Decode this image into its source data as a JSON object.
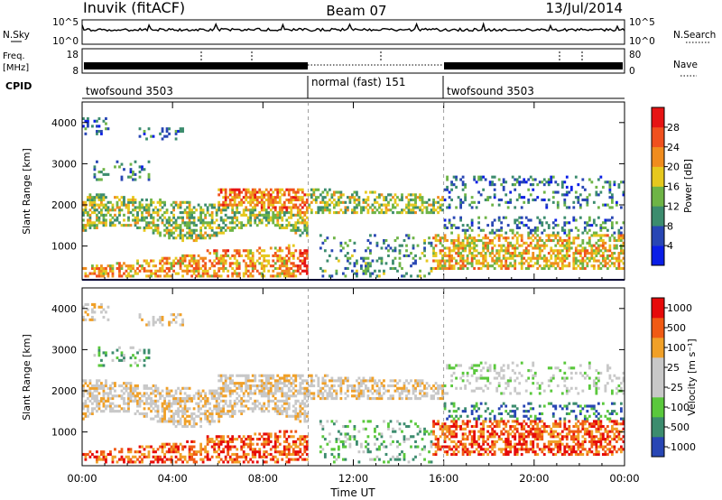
{
  "header": {
    "title_left": "Inuvik (fitACF)",
    "title_center": "Beam 07",
    "title_right": "13/Jul/2014"
  },
  "strip_nsky": {
    "left_label": "N.Sky",
    "right_label": "N.Search",
    "left_ticks": [
      "10^5",
      "10^0"
    ],
    "right_ticks": [
      "10^5",
      "10^0"
    ]
  },
  "strip_freq": {
    "left_label": "Freq.",
    "left_unit": "[MHz]",
    "right_label": "Nave",
    "left_ticks": [
      "18",
      "8"
    ],
    "right_ticks": [
      "80",
      "0"
    ]
  },
  "cpid": {
    "label": "CPID",
    "segments": [
      {
        "name": "twofsound 3503",
        "start_h": 0,
        "end_h": 10
      },
      {
        "name": "normal (fast) 151",
        "start_h": 10,
        "end_h": 16
      },
      {
        "name": "twofsound 3503",
        "start_h": 16,
        "end_h": 24
      }
    ]
  },
  "colors": {
    "power": [
      "#0a1ee6",
      "#2846b4",
      "#3c8c6e",
      "#6eb446",
      "#e6c81e",
      "#f08c1e",
      "#f0501e",
      "#e61414"
    ],
    "velocity": [
      "#e60a0a",
      "#f05a14",
      "#f0a028",
      "#c8c8c8",
      "#c8c8c8",
      "#5ac83c",
      "#3c8c6e",
      "#2846b4"
    ]
  },
  "chart_data": [
    {
      "type": "heatmap",
      "title": "",
      "xlabel": "",
      "ylabel": "Slant Range [km]",
      "x_ticks": [
        "00:00",
        "04:00",
        "08:00",
        "12:00",
        "16:00",
        "20:00",
        "00:00"
      ],
      "y_ticks": [
        "1000",
        "2000",
        "3000",
        "4000"
      ],
      "xlim_hours": [
        0,
        24
      ],
      "ylim_km": [
        180,
        4500
      ],
      "colorbar": {
        "label": "Power [dB]",
        "ticks": [
          "4",
          "8",
          "12",
          "16",
          "20",
          "24",
          "28"
        ],
        "range": [
          0,
          30
        ]
      }
    },
    {
      "type": "heatmap",
      "title": "",
      "xlabel": "Time UT",
      "ylabel": "Slant Range [km]",
      "x_ticks": [
        "00:00",
        "04:00",
        "08:00",
        "12:00",
        "16:00",
        "20:00",
        "00:00"
      ],
      "y_ticks": [
        "1000",
        "2000",
        "3000",
        "4000"
      ],
      "xlim_hours": [
        0,
        24
      ],
      "ylim_km": [
        180,
        4500
      ],
      "colorbar": {
        "label": "Velocity [m s⁻¹]",
        "ticks": [
          "1000",
          "500",
          "100",
          "25",
          "-25",
          "-100",
          "-500",
          "-1000"
        ]
      }
    }
  ]
}
